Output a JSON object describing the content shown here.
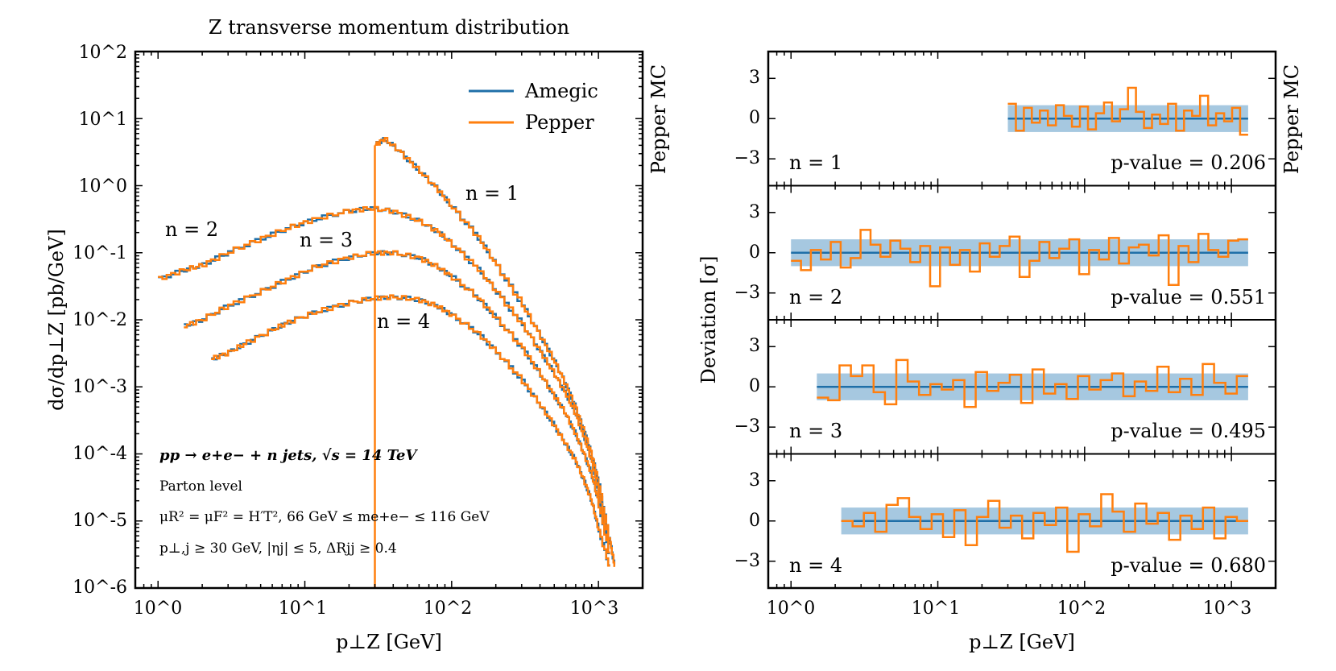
{
  "colors": {
    "amegic": "#1f6fa8",
    "pepper": "#ff7f0e",
    "band": "#a6c8e0"
  },
  "left": {
    "chart_data": {
      "type": "line",
      "title": "Z transverse momentum distribution",
      "xlabel": "p⊥Z [GeV]",
      "ylabel": "dσ/dp⊥Z [pb/GeV]",
      "xscale": "log",
      "yscale": "log",
      "xlim": [
        0.7,
        2000
      ],
      "ylim": [
        1e-06,
        100
      ],
      "x_ticks": [
        "10^0",
        "10^1",
        "10^2",
        "10^3"
      ],
      "y_ticks": [
        "10^2",
        "10^1",
        "10^0",
        "10^-1",
        "10^-2",
        "10^-3",
        "10^-4",
        "10^-5",
        "10^-6"
      ],
      "legend": [
        "Amegic",
        "Pepper"
      ],
      "legend_position": "top-right",
      "side_label": "Pepper MC",
      "series_labels": [
        "n = 1",
        "n = 2",
        "n = 3",
        "n = 4"
      ],
      "series": [
        {
          "name": "n = 1",
          "x": [
            30,
            35,
            45,
            60,
            80,
            100,
            150,
            200,
            300,
            400,
            500,
            600,
            700,
            800,
            900,
            1000,
            1200,
            1300
          ],
          "y": [
            4.0,
            5.0,
            3.2,
            1.7,
            0.9,
            0.5,
            0.18,
            0.07,
            0.018,
            0.006,
            0.0025,
            0.0011,
            0.0005,
            0.00022,
            0.0001,
            4e-05,
            5e-06,
            2e-06
          ]
        },
        {
          "name": "n = 2",
          "x": [
            1,
            1.5,
            2,
            3,
            5,
            8,
            12,
            20,
            28,
            40,
            60,
            80,
            100,
            150,
            200,
            300,
            400,
            500,
            600,
            700,
            800,
            900,
            1000,
            1200
          ],
          "y": [
            0.04,
            0.055,
            0.065,
            0.1,
            0.16,
            0.24,
            0.32,
            0.42,
            0.46,
            0.42,
            0.3,
            0.21,
            0.14,
            0.06,
            0.028,
            0.009,
            0.0035,
            0.0016,
            0.0008,
            0.0004,
            0.00018,
            8e-05,
            3e-05,
            4e-06
          ]
        },
        {
          "name": "n = 3",
          "x": [
            1.5,
            2,
            3,
            5,
            8,
            12,
            20,
            30,
            40,
            60,
            80,
            100,
            150,
            200,
            300,
            400,
            500,
            600,
            700,
            800,
            900,
            1000,
            1200
          ],
          "y": [
            0.008,
            0.01,
            0.016,
            0.026,
            0.042,
            0.062,
            0.085,
            0.1,
            0.1,
            0.085,
            0.062,
            0.045,
            0.022,
            0.011,
            0.004,
            0.0016,
            0.00075,
            0.0004,
            0.0002,
            0.0001,
            5e-05,
            2e-05,
            3e-06
          ]
        },
        {
          "name": "n = 4",
          "x": [
            2.3,
            3,
            4,
            6,
            8,
            12,
            20,
            30,
            40,
            60,
            80,
            100,
            150,
            200,
            300,
            400,
            500,
            600,
            700,
            800,
            900,
            1000,
            1200
          ],
          "y": [
            0.0026,
            0.0032,
            0.0045,
            0.007,
            0.0095,
            0.013,
            0.018,
            0.021,
            0.022,
            0.02,
            0.016,
            0.012,
            0.0065,
            0.0035,
            0.0013,
            0.00055,
            0.00027,
            0.00014,
            8e-05,
            4e-05,
            2e-05,
            8e-06,
            2e-06
          ]
        }
      ],
      "annotations": [
        "pp → e+e− + n jets, √s = 14 TeV",
        "Parton level",
        "μR² = μF² = H′T², 66 GeV ≤ me+e− ≤ 116 GeV",
        "p⊥,j ≥ 30 GeV, |ηj| ≤ 5, ΔRjj ≥ 0.4"
      ]
    }
  },
  "right": {
    "chart_data": {
      "type": "line",
      "xlabel": "p⊥Z [GeV]",
      "ylabel": "Deviation [σ]",
      "xscale": "log",
      "xlim": [
        0.7,
        2000
      ],
      "ylim": [
        -5,
        5
      ],
      "x_ticks": [
        "10^0",
        "10^1",
        "10^2",
        "10^3"
      ],
      "y_ticks": [
        "3",
        "0",
        "−3"
      ],
      "side_label": "Pepper MC",
      "panels": [
        {
          "label": "n = 1",
          "pvalue_text": "p-value = 0.206",
          "x_start": 30,
          "x_end": 1300,
          "deviations": [
            1.1,
            -0.9,
            0.8,
            -0.3,
            0.6,
            -0.5,
            1.0,
            0.2,
            -0.6,
            0.9,
            -0.8,
            0.4,
            1.2,
            -0.2,
            0.7,
            2.3,
            0.5,
            -0.7,
            0.3,
            -0.4,
            1.1,
            -0.9,
            0.6,
            0.2,
            1.7,
            -0.5,
            0.4,
            -0.2,
            0.8,
            -1.2
          ]
        },
        {
          "label": "n = 2",
          "pvalue_text": "p-value = 0.551",
          "x_start": 1,
          "x_end": 1300,
          "deviations": [
            -0.6,
            -1.3,
            0.2,
            -0.5,
            0.8,
            -1.1,
            -0.4,
            1.7,
            0.6,
            -0.3,
            0.9,
            0.3,
            -0.7,
            0.5,
            -2.5,
            0.4,
            -0.9,
            0.2,
            -1.4,
            0.7,
            -0.3,
            0.5,
            1.2,
            -1.8,
            -0.6,
            0.8,
            -0.4,
            0.3,
            1.0,
            -1.6,
            0.2,
            -0.5,
            1.1,
            -0.8,
            0.4,
            0.6,
            -0.2,
            1.3,
            -2.4,
            0.5,
            -0.7,
            1.4,
            0.2,
            -0.3,
            0.9,
            1.0
          ]
        },
        {
          "label": "n = 3",
          "pvalue_text": "p-value = 0.495",
          "x_start": 1.5,
          "x_end": 1300,
          "deviations": [
            -0.8,
            -1.0,
            1.6,
            0.8,
            1.6,
            -0.4,
            -1.3,
            2.0,
            0.4,
            -0.6,
            0.2,
            -0.2,
            0.5,
            -1.5,
            1.1,
            -0.3,
            0.3,
            0.9,
            -1.2,
            1.3,
            -0.5,
            0.2,
            -0.9,
            0.8,
            -0.2,
            0.5,
            1.0,
            -0.7,
            0.4,
            -0.3,
            1.5,
            -0.4,
            0.6,
            -0.6,
            1.7,
            0.3,
            -0.5,
            0.8
          ]
        },
        {
          "label": "n = 4",
          "pvalue_text": "p-value = 0.680",
          "x_start": 2.2,
          "x_end": 1300,
          "deviations": [
            0.0,
            -0.4,
            0.6,
            -0.8,
            1.2,
            1.7,
            0.3,
            -0.6,
            0.5,
            -1.2,
            0.8,
            -1.8,
            0.3,
            1.5,
            -0.5,
            0.4,
            -1.3,
            0.6,
            -0.3,
            1.0,
            -2.3,
            0.5,
            -0.4,
            2.0,
            0.7,
            -0.8,
            1.3,
            -0.2,
            0.6,
            -1.4,
            0.4,
            -0.6,
            1.0,
            -1.3,
            0.3,
            0.0
          ]
        }
      ]
    }
  }
}
